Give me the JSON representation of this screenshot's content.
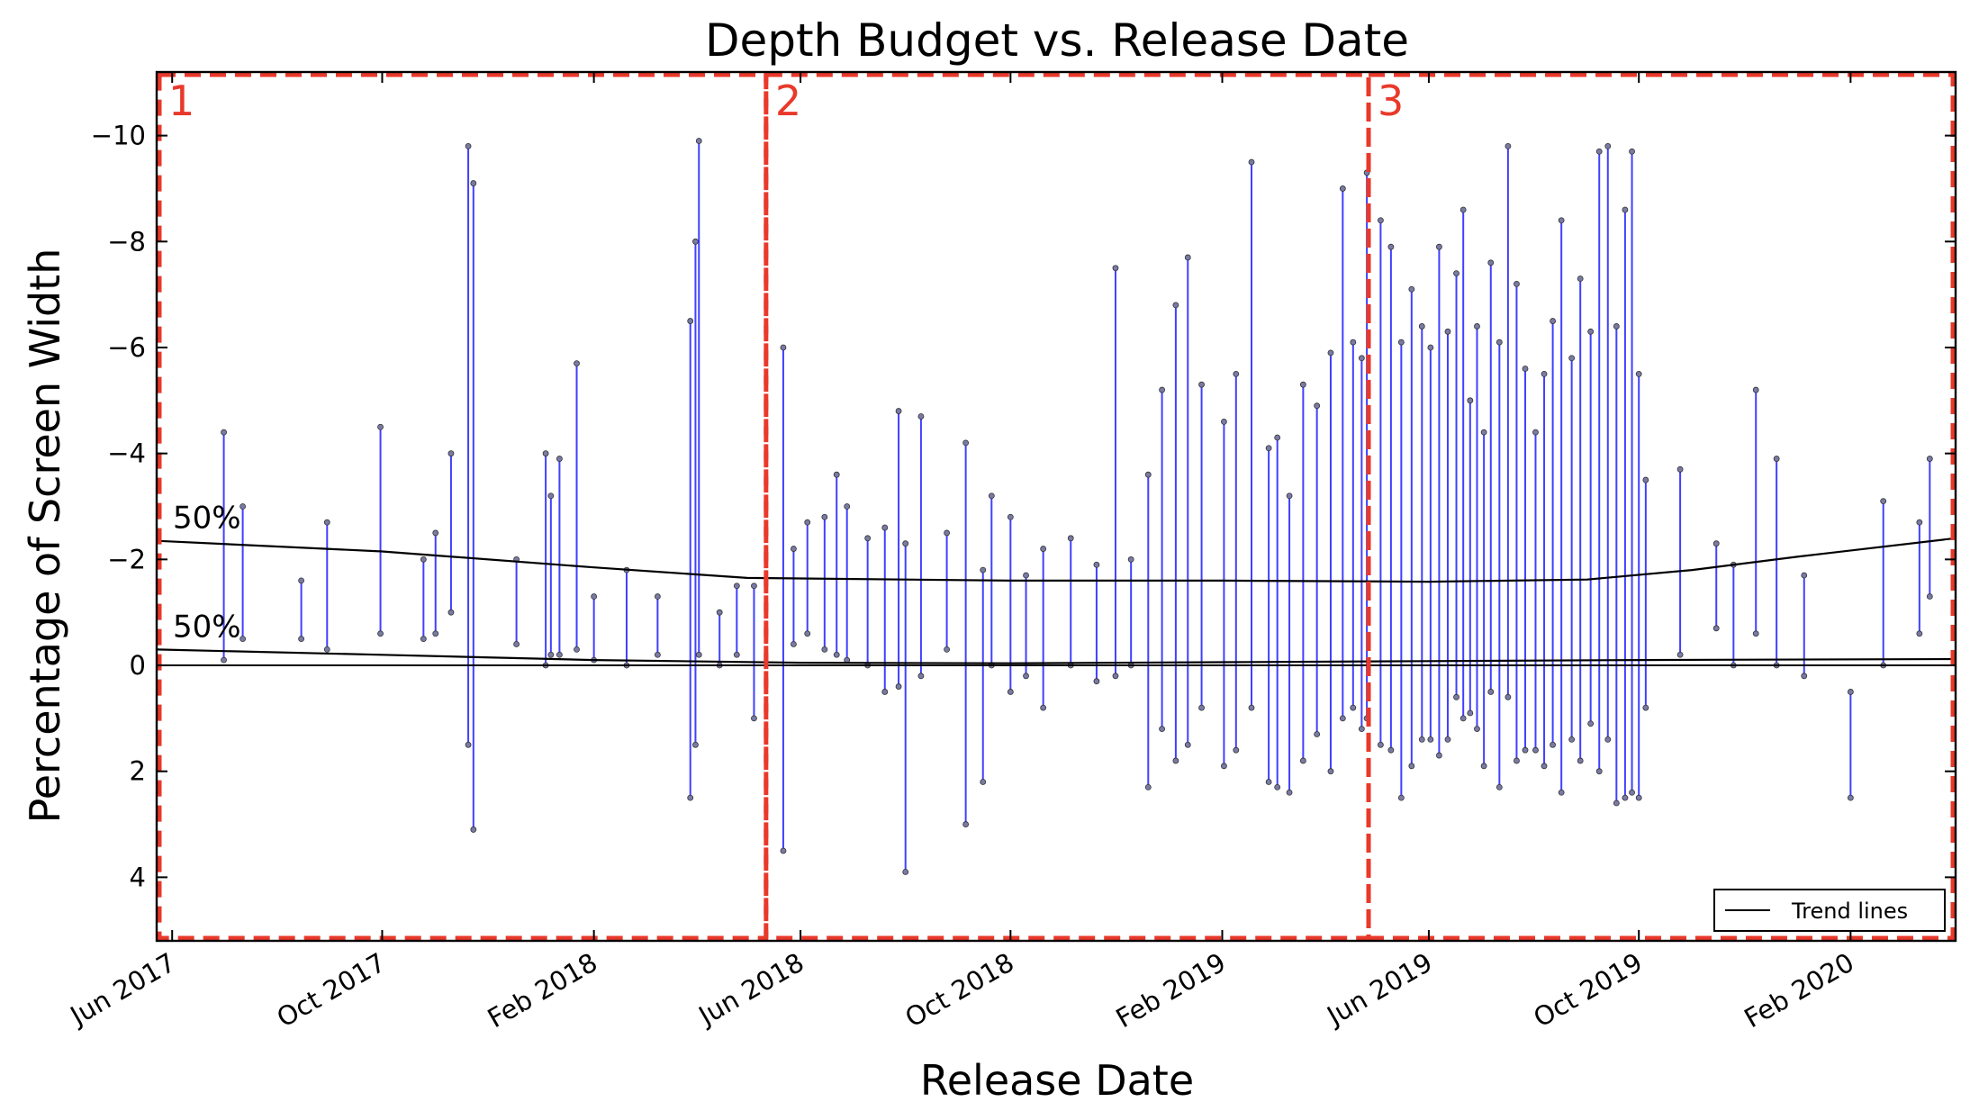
{
  "chart_data": {
    "type": "scatter",
    "title": "Depth Budget vs. Release Date",
    "xlabel": "Release Date",
    "ylabel": "Percentage of Screen Width",
    "xlim": [
      "2017-05-23",
      "2020-04-02"
    ],
    "ylim": [
      5.2,
      -11.2
    ],
    "y_inverted": true,
    "grid": false,
    "x_ticks": [
      {
        "date": "2017-06-01",
        "label": "Jun 2017"
      },
      {
        "date": "2017-10-01",
        "label": "Oct 2017"
      },
      {
        "date": "2018-02-01",
        "label": "Feb 2018"
      },
      {
        "date": "2018-06-01",
        "label": "Jun 2018"
      },
      {
        "date": "2018-10-01",
        "label": "Oct 2018"
      },
      {
        "date": "2019-02-01",
        "label": "Feb 2019"
      },
      {
        "date": "2019-06-01",
        "label": "Jun 2019"
      },
      {
        "date": "2019-10-01",
        "label": "Oct 2019"
      },
      {
        "date": "2020-02-01",
        "label": "Feb 2020"
      }
    ],
    "y_ticks": [
      {
        "value": -10,
        "label": "−10"
      },
      {
        "value": -8,
        "label": "−8"
      },
      {
        "value": -6,
        "label": "−6"
      },
      {
        "value": -4,
        "label": "−4"
      },
      {
        "value": -2,
        "label": "−2"
      },
      {
        "value": 0,
        "label": "0"
      },
      {
        "value": 2,
        "label": "2"
      },
      {
        "value": 4,
        "label": "4"
      }
    ],
    "regions": [
      {
        "label": "1",
        "start": "2017-05-23",
        "end": "2018-05-12"
      },
      {
        "label": "2",
        "start": "2018-05-12",
        "end": "2019-04-27"
      },
      {
        "label": "3",
        "start": "2019-04-27",
        "end": "2020-04-02"
      }
    ],
    "trend_lines": [
      {
        "label": "50%",
        "points": [
          [
            "2017-05-23",
            -2.35
          ],
          [
            "2017-10-01",
            -2.15
          ],
          [
            "2018-02-01",
            -1.85
          ],
          [
            "2018-05-01",
            -1.65
          ],
          [
            "2018-10-01",
            -1.6
          ],
          [
            "2019-02-01",
            -1.6
          ],
          [
            "2019-06-01",
            -1.58
          ],
          [
            "2019-09-01",
            -1.62
          ],
          [
            "2019-11-01",
            -1.8
          ],
          [
            "2020-01-01",
            -2.05
          ],
          [
            "2020-04-02",
            -2.4
          ]
        ]
      },
      {
        "label": "50%",
        "points": [
          [
            "2017-05-23",
            -0.3
          ],
          [
            "2017-10-01",
            -0.2
          ],
          [
            "2018-02-01",
            -0.1
          ],
          [
            "2018-06-01",
            -0.05
          ],
          [
            "2018-10-01",
            -0.04
          ],
          [
            "2019-02-01",
            -0.06
          ],
          [
            "2019-06-01",
            -0.08
          ],
          [
            "2019-10-01",
            -0.1
          ],
          [
            "2020-04-02",
            -0.12
          ]
        ]
      }
    ],
    "zero_line": 0,
    "legend": {
      "entries": [
        "Trend lines"
      ],
      "position": "lower-right"
    },
    "series": [
      {
        "color": "#0000ff",
        "marker_color": "#7a7aa6",
        "segments": [
          [
            "2017-07-01",
            -4.4,
            -0.1
          ],
          [
            "2017-07-12",
            -3.0,
            -0.5
          ],
          [
            "2017-08-15",
            -1.6,
            -0.5
          ],
          [
            "2017-08-30",
            -2.7,
            -0.3
          ],
          [
            "2017-09-30",
            -4.5,
            -0.6
          ],
          [
            "2017-10-25",
            -2.0,
            -0.5
          ],
          [
            "2017-11-01",
            -2.5,
            -0.6
          ],
          [
            "2017-11-10",
            -4.0,
            -1.0
          ],
          [
            "2017-11-20",
            -9.8,
            1.5
          ],
          [
            "2017-11-23",
            -9.1,
            3.1
          ],
          [
            "2017-12-18",
            -2.0,
            -0.4
          ],
          [
            "2018-01-04",
            -4.0,
            0.0
          ],
          [
            "2018-01-07",
            -3.2,
            -0.2
          ],
          [
            "2018-01-12",
            -3.9,
            -0.2
          ],
          [
            "2018-01-22",
            -5.7,
            -0.3
          ],
          [
            "2018-02-01",
            -1.3,
            -0.1
          ],
          [
            "2018-02-20",
            -1.8,
            0.0
          ],
          [
            "2018-03-10",
            -1.3,
            -0.2
          ],
          [
            "2018-03-29",
            -6.5,
            2.5
          ],
          [
            "2018-04-01",
            -8.0,
            1.5
          ],
          [
            "2018-04-03",
            -9.9,
            -0.2
          ],
          [
            "2018-04-15",
            -1.0,
            0.0
          ],
          [
            "2018-04-25",
            -1.5,
            -0.2
          ],
          [
            "2018-05-05",
            -1.5,
            1.0
          ],
          [
            "2018-05-22",
            -6.0,
            3.5
          ],
          [
            "2018-05-28",
            -2.2,
            -0.4
          ],
          [
            "2018-06-05",
            -2.7,
            -0.6
          ],
          [
            "2018-06-15",
            -2.8,
            -0.3
          ],
          [
            "2018-06-22",
            -3.6,
            -0.2
          ],
          [
            "2018-06-28",
            -3.0,
            -0.1
          ],
          [
            "2018-07-10",
            -2.4,
            0.0
          ],
          [
            "2018-07-20",
            -2.6,
            0.5
          ],
          [
            "2018-07-28",
            -4.8,
            0.4
          ],
          [
            "2018-08-01",
            -2.3,
            3.9
          ],
          [
            "2018-08-10",
            -4.7,
            0.2
          ],
          [
            "2018-08-25",
            -2.5,
            -0.3
          ],
          [
            "2018-09-05",
            -4.2,
            3.0
          ],
          [
            "2018-09-15",
            -1.8,
            2.2
          ],
          [
            "2018-09-20",
            -3.2,
            0.0
          ],
          [
            "2018-10-01",
            -2.8,
            0.5
          ],
          [
            "2018-10-10",
            -1.7,
            0.2
          ],
          [
            "2018-10-20",
            -2.2,
            0.8
          ],
          [
            "2018-11-05",
            -2.4,
            0.0
          ],
          [
            "2018-11-20",
            -1.9,
            0.3
          ],
          [
            "2018-12-01",
            -7.5,
            0.2
          ],
          [
            "2018-12-10",
            -2.0,
            0.0
          ],
          [
            "2018-12-20",
            -3.6,
            2.3
          ],
          [
            "2018-12-28",
            -5.2,
            1.2
          ],
          [
            "2019-01-05",
            -6.8,
            1.8
          ],
          [
            "2019-01-12",
            -7.7,
            1.5
          ],
          [
            "2019-01-20",
            -5.3,
            0.8
          ],
          [
            "2019-02-02",
            -4.6,
            1.9
          ],
          [
            "2019-02-09",
            -5.5,
            1.6
          ],
          [
            "2019-02-18",
            -9.5,
            0.8
          ],
          [
            "2019-02-28",
            -4.1,
            2.2
          ],
          [
            "2019-03-05",
            -4.3,
            2.3
          ],
          [
            "2019-03-12",
            -3.2,
            2.4
          ],
          [
            "2019-03-20",
            -5.3,
            1.8
          ],
          [
            "2019-03-28",
            -4.9,
            1.3
          ],
          [
            "2019-04-05",
            -5.9,
            2.0
          ],
          [
            "2019-04-12",
            -9.0,
            1.0
          ],
          [
            "2019-04-18",
            -6.1,
            0.8
          ],
          [
            "2019-04-23",
            -5.8,
            1.2
          ],
          [
            "2019-04-26",
            -9.3,
            1.0
          ],
          [
            "2019-05-04",
            -8.4,
            1.5
          ],
          [
            "2019-05-10",
            -7.9,
            1.6
          ],
          [
            "2019-05-16",
            -6.1,
            2.5
          ],
          [
            "2019-05-22",
            -7.1,
            1.9
          ],
          [
            "2019-05-28",
            -6.4,
            1.4
          ],
          [
            "2019-06-02",
            -6.0,
            1.4
          ],
          [
            "2019-06-07",
            -7.9,
            1.7
          ],
          [
            "2019-06-12",
            -6.3,
            1.4
          ],
          [
            "2019-06-17",
            -7.4,
            0.6
          ],
          [
            "2019-06-21",
            -8.6,
            1.0
          ],
          [
            "2019-06-25",
            -5.0,
            0.9
          ],
          [
            "2019-06-29",
            -6.4,
            1.2
          ],
          [
            "2019-07-03",
            -4.4,
            1.9
          ],
          [
            "2019-07-07",
            -7.6,
            0.5
          ],
          [
            "2019-07-12",
            -6.1,
            2.3
          ],
          [
            "2019-07-17",
            -9.8,
            0.6
          ],
          [
            "2019-07-22",
            -7.2,
            1.8
          ],
          [
            "2019-07-27",
            -5.6,
            1.6
          ],
          [
            "2019-08-02",
            -4.4,
            1.6
          ],
          [
            "2019-08-07",
            -5.5,
            1.9
          ],
          [
            "2019-08-12",
            -6.5,
            1.5
          ],
          [
            "2019-08-17",
            -8.4,
            2.4
          ],
          [
            "2019-08-23",
            -5.8,
            1.4
          ],
          [
            "2019-08-28",
            -7.3,
            1.8
          ],
          [
            "2019-09-03",
            -6.3,
            1.1
          ],
          [
            "2019-09-08",
            -9.7,
            2.0
          ],
          [
            "2019-09-13",
            -9.8,
            1.4
          ],
          [
            "2019-09-18",
            -6.4,
            2.6
          ],
          [
            "2019-09-23",
            -8.6,
            2.5
          ],
          [
            "2019-09-27",
            -9.7,
            2.4
          ],
          [
            "2019-10-01",
            -5.5,
            2.5
          ],
          [
            "2019-10-05",
            -3.5,
            0.8
          ],
          [
            "2019-10-25",
            -3.7,
            -0.2
          ],
          [
            "2019-11-15",
            -2.3,
            -0.7
          ],
          [
            "2019-11-25",
            -1.9,
            0.0
          ],
          [
            "2019-12-08",
            -5.2,
            -0.6
          ],
          [
            "2019-12-20",
            -3.9,
            0.0
          ],
          [
            "2020-01-05",
            -1.7,
            0.2
          ],
          [
            "2020-02-01",
            0.5,
            2.5
          ],
          [
            "2020-02-20",
            -3.1,
            0.0
          ],
          [
            "2020-03-12",
            -2.7,
            -0.6
          ],
          [
            "2020-03-18",
            -3.9,
            -1.3
          ]
        ]
      }
    ]
  }
}
